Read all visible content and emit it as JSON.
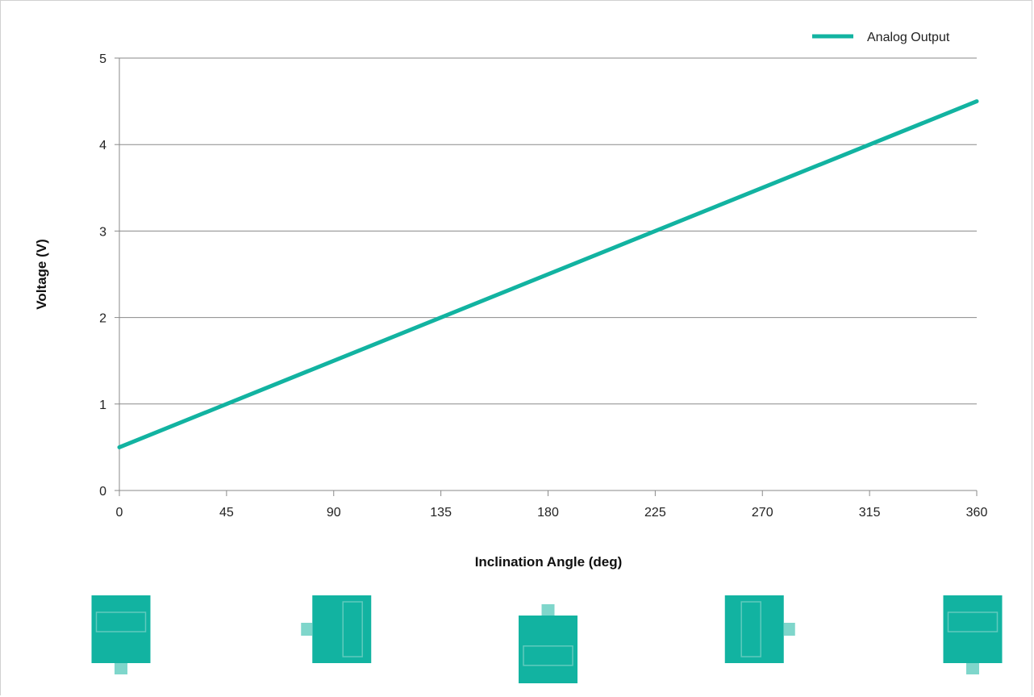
{
  "chart_data": {
    "type": "line",
    "title": "",
    "xlabel": "Inclination Angle (deg)",
    "ylabel": "Voltage (V)",
    "xlim": [
      0,
      360
    ],
    "ylim": [
      0,
      5
    ],
    "x_ticks": [
      "0",
      "45",
      "90",
      "135",
      "180",
      "225",
      "270",
      "315",
      "360"
    ],
    "y_ticks": [
      "0",
      "1",
      "2",
      "3",
      "4",
      "5"
    ],
    "grid": "horizontal",
    "legend_position": "top-right",
    "series": [
      {
        "name": "Analog Output",
        "color": "#12b3a1",
        "x": [
          0,
          360
        ],
        "y": [
          0.5,
          4.5
        ]
      }
    ],
    "orientation_icons": [
      {
        "angle": 0,
        "connector": "bottom",
        "window": "horizontal"
      },
      {
        "angle": 90,
        "connector": "left",
        "window": "vertical"
      },
      {
        "angle": 180,
        "connector": "top",
        "window": "horizontal"
      },
      {
        "angle": 270,
        "connector": "right",
        "window": "vertical"
      },
      {
        "angle": 360,
        "connector": "bottom",
        "window": "horizontal"
      }
    ]
  }
}
